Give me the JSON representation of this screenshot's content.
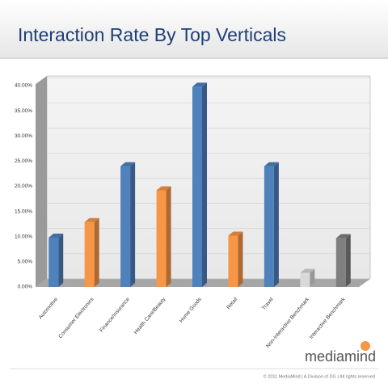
{
  "chart_data": {
    "type": "bar3d",
    "title": "Interaction Rate By Top Verticals",
    "categories": [
      "Automotive",
      "Consumer Electronics",
      "Finance/Insurance",
      "Health Care/Beauty",
      "Home Goods",
      "Retail",
      "Travel",
      "Non-Interactive Benchmark",
      "Interactive Benchmark"
    ],
    "values": [
      9.8,
      12.9,
      24,
      19.2,
      39.8,
      10.2,
      24,
      2.8,
      9.7
    ],
    "colors": [
      "#4f81bd",
      "#f79646",
      "#4f81bd",
      "#f79646",
      "#4f81bd",
      "#f79646",
      "#4f81bd",
      "#d9d9d9",
      "#7f7f7f"
    ],
    "ylim": [
      0,
      40
    ],
    "yticks": [
      {
        "value": 0,
        "label": "0.00%"
      },
      {
        "value": 5,
        "label": "5.00%"
      },
      {
        "value": 10,
        "label": "10.00%"
      },
      {
        "value": 15,
        "label": "15.00%"
      },
      {
        "value": 20,
        "label": "20.00%"
      },
      {
        "value": 25,
        "label": "25.00%"
      },
      {
        "value": 30,
        "label": "30.00%"
      },
      {
        "value": 35,
        "label": "35.00%"
      },
      {
        "value": 40,
        "label": "40.00%"
      }
    ],
    "grid": true
  },
  "logo": "mediamind",
  "footer": "© 2011 MediaMind | A Division of DG | All rights reserved"
}
